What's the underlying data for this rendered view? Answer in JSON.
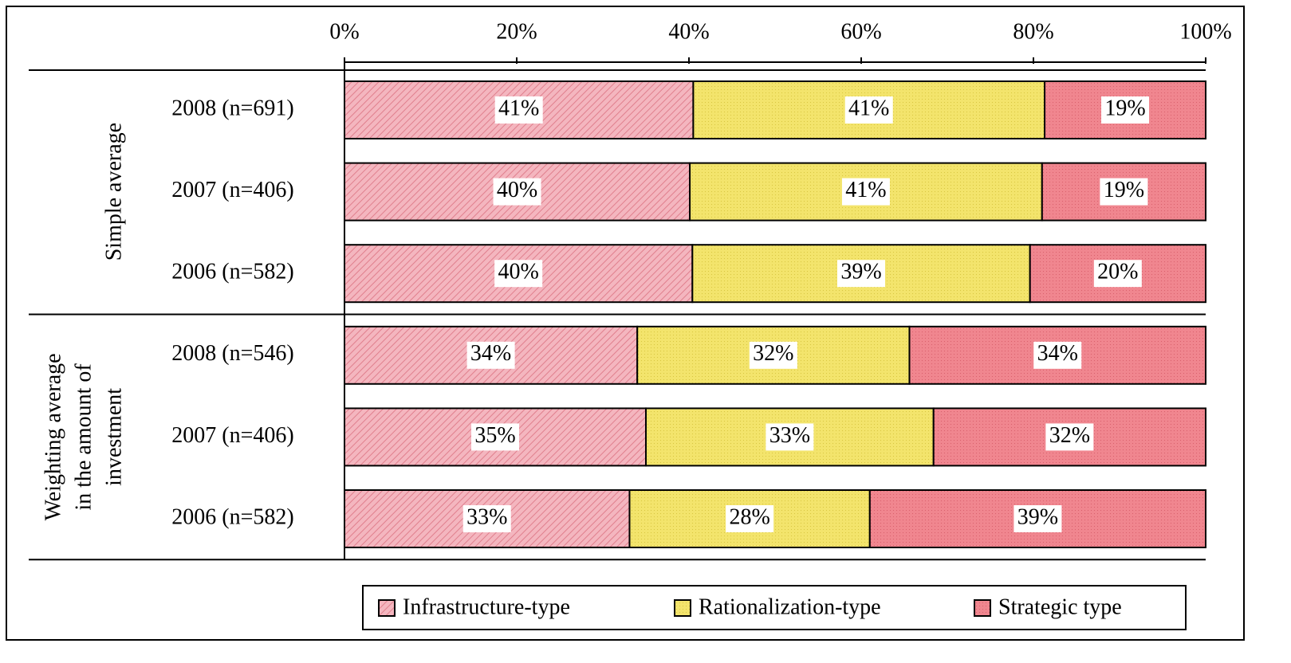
{
  "chart_data": {
    "type": "stacked-bar-horizontal",
    "groups": [
      {
        "label": [
          "Simple average"
        ],
        "rows": [
          0,
          1,
          2
        ]
      },
      {
        "label": [
          "Weighting average",
          "in the amount of",
          "investment"
        ],
        "rows": [
          3,
          4,
          5
        ]
      }
    ],
    "categories": [
      "2008 (n=691)",
      "2007 (n=406)",
      "2006 (n=582)",
      "2008 (n=546)",
      "2007 (n=406)",
      "2006 (n=582)"
    ],
    "series": [
      {
        "name": "Infrastructure-type",
        "color": "#f4b6bf",
        "values": [
          40.5,
          40.1,
          40.4,
          34.0,
          35.0,
          33.1
        ],
        "value_labels": [
          "41%",
          "40%",
          "40%",
          "34%",
          "35%",
          "33%"
        ]
      },
      {
        "name": "Rationalization-type",
        "color": "#f3e46c",
        "values": [
          40.8,
          40.9,
          39.2,
          31.6,
          33.4,
          27.9
        ],
        "value_labels": [
          "41%",
          "41%",
          "39%",
          "32%",
          "33%",
          "28%"
        ]
      },
      {
        "name": "Strategic type",
        "color": "#f0868f",
        "values": [
          18.7,
          19.0,
          20.4,
          34.4,
          31.6,
          39.0
        ],
        "value_labels": [
          "19%",
          "19%",
          "20%",
          "34%",
          "32%",
          "39%"
        ]
      }
    ],
    "xlim": [
      0,
      100
    ],
    "xticks": [
      {
        "value": 0,
        "label": "0%"
      },
      {
        "value": 20,
        "label": "20%"
      },
      {
        "value": 40,
        "label": "40%"
      },
      {
        "value": 60,
        "label": "60%"
      },
      {
        "value": 80,
        "label": "80%"
      },
      {
        "value": 100,
        "label": "100%"
      }
    ],
    "legend": "bottom"
  }
}
